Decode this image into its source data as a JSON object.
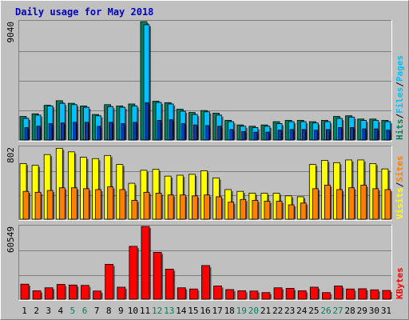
{
  "chart_data": {
    "type": "bar",
    "title": "Daily usage for May 2018",
    "categories": [
      "1",
      "2",
      "3",
      "4",
      "5",
      "6",
      "7",
      "8",
      "9",
      "10",
      "11",
      "12",
      "13",
      "14",
      "15",
      "16",
      "17",
      "18",
      "19",
      "20",
      "21",
      "22",
      "23",
      "24",
      "25",
      "26",
      "27",
      "28",
      "29",
      "30",
      "31"
    ],
    "weekend_days": [
      "5",
      "6",
      "12",
      "13",
      "19",
      "20",
      "26",
      "27"
    ],
    "grid": true,
    "panels": [
      {
        "id": "hits-files-pages",
        "max_label": "9040",
        "ymax": 9040,
        "series": [
          {
            "name": "Hits",
            "color": "#00805c",
            "values": [
              1800,
              2000,
              2650,
              3000,
              2800,
              2600,
              1950,
              2700,
              2600,
              2750,
              9040,
              2960,
              2850,
              2350,
              2100,
              2250,
              2050,
              1500,
              1150,
              1050,
              1150,
              1400,
              1500,
              1500,
              1400,
              1500,
              1800,
              1850,
              1600,
              1600,
              1500
            ]
          },
          {
            "name": "Files",
            "color": "#00c0ff",
            "values": [
              1650,
              1900,
              2600,
              2800,
              2700,
              2500,
              1850,
              2550,
              2500,
              2600,
              8800,
              2870,
              2750,
              2200,
              1950,
              2150,
              1900,
              1400,
              1050,
              950,
              1050,
              1250,
              1400,
              1400,
              1300,
              1400,
              1650,
              1750,
              1500,
              1500,
              1400
            ]
          },
          {
            "name": "Pages",
            "color": "#0040c0",
            "values": [
              950,
              1050,
              1250,
              1300,
              1350,
              1350,
              1050,
              1350,
              1250,
              1350,
              2850,
              1500,
              1550,
              1250,
              1150,
              1100,
              1050,
              800,
              650,
              600,
              600,
              750,
              800,
              800,
              750,
              800,
              950,
              950,
              850,
              850,
              750
            ]
          }
        ],
        "right_label": [
          {
            "text": "Hits",
            "color": "#00805c"
          },
          {
            "text": "/",
            "color": "#000000"
          },
          {
            "text": "Files",
            "color": "#00c0ff"
          },
          {
            "text": "/",
            "color": "#000000"
          },
          {
            "text": "Pages",
            "color": "#00c0ff"
          }
        ]
      },
      {
        "id": "visits-sites",
        "max_label": "802",
        "ymax": 802,
        "series": [
          {
            "name": "Visits",
            "color": "#ffff00",
            "values": [
              620,
              600,
              720,
              790,
              750,
              690,
              675,
              710,
              610,
              400,
              545,
              555,
              480,
              490,
              500,
              540,
              460,
              330,
              310,
              290,
              290,
              290,
              260,
              250,
              610,
              655,
              630,
              660,
              660,
              620,
              560
            ]
          },
          {
            "name": "Sites",
            "color": "#ff8000",
            "values": [
              310,
              300,
              320,
              350,
              350,
              340,
              330,
              360,
              330,
              210,
              300,
              290,
              270,
              270,
              260,
              270,
              250,
              190,
              220,
              210,
              200,
              200,
              160,
              180,
              340,
              380,
              330,
              350,
              380,
              340,
              330
            ]
          }
        ],
        "right_label": [
          {
            "text": "Visits",
            "color": "#ffff00"
          },
          {
            "text": "/",
            "color": "#000000"
          },
          {
            "text": "Sites",
            "color": "#ff8000"
          }
        ]
      },
      {
        "id": "kbytes",
        "max_label": "60549",
        "ymax": 60549,
        "series": [
          {
            "name": "KBytes",
            "color": "#ff0000",
            "values": [
              12500,
              7000,
              9500,
              12300,
              11800,
              11500,
              6800,
              29000,
              10000,
              44000,
              60549,
              39000,
              25000,
              9500,
              8500,
              28000,
              11000,
              8000,
              7000,
              6800,
              5500,
              9500,
              9000,
              7000,
              10000,
              5500,
              11000,
              8500,
              8700,
              7800,
              7300
            ]
          }
        ],
        "right_label": [
          {
            "text": "KBytes",
            "color": "#ff0000"
          }
        ]
      }
    ]
  }
}
